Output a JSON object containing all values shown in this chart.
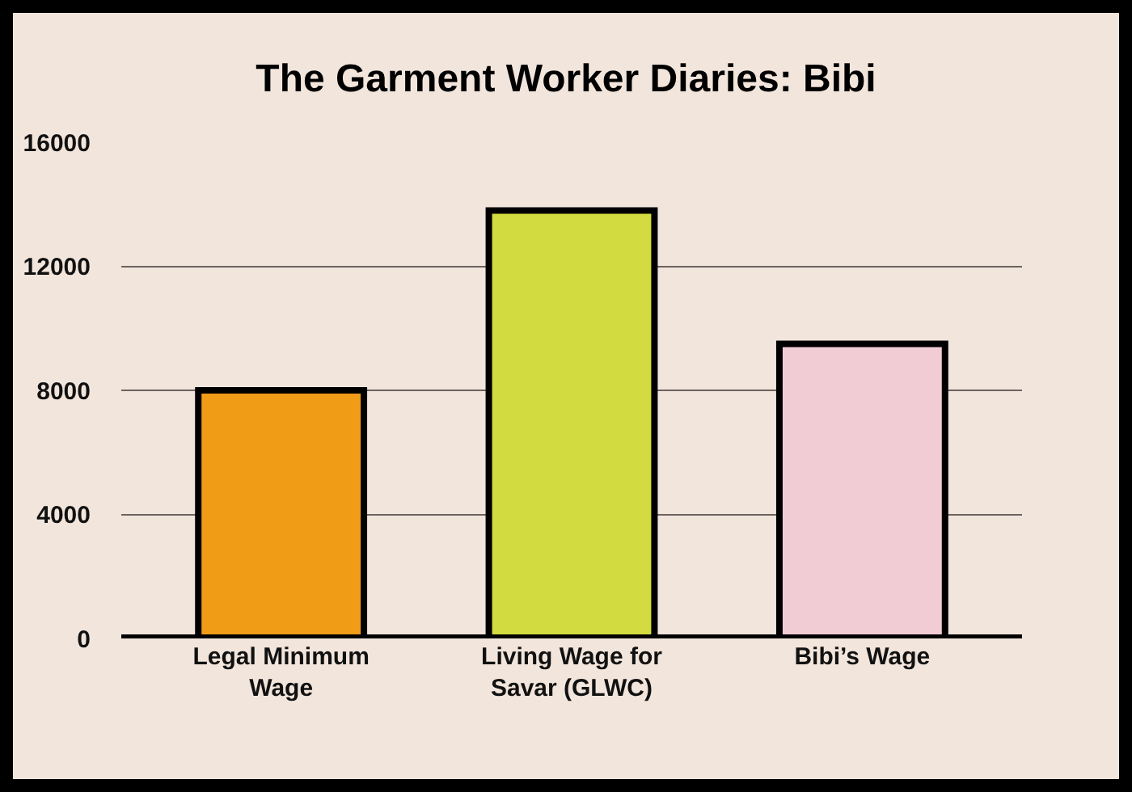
{
  "chart_data": {
    "type": "bar",
    "title": "The Garment Worker Diaries: Bibi",
    "categories": [
      "Legal Minimum Wage",
      "Living Wage for Savar (GLWC)",
      "Bibi’s Wage"
    ],
    "values": [
      8000,
      13800,
      9500
    ],
    "colors": [
      "#f09c17",
      "#d2db3f",
      "#f2ccd5"
    ],
    "ylim": [
      0,
      16000
    ],
    "yticks": [
      0,
      4000,
      8000,
      12000,
      16000
    ],
    "grid": "y",
    "legend": false
  }
}
